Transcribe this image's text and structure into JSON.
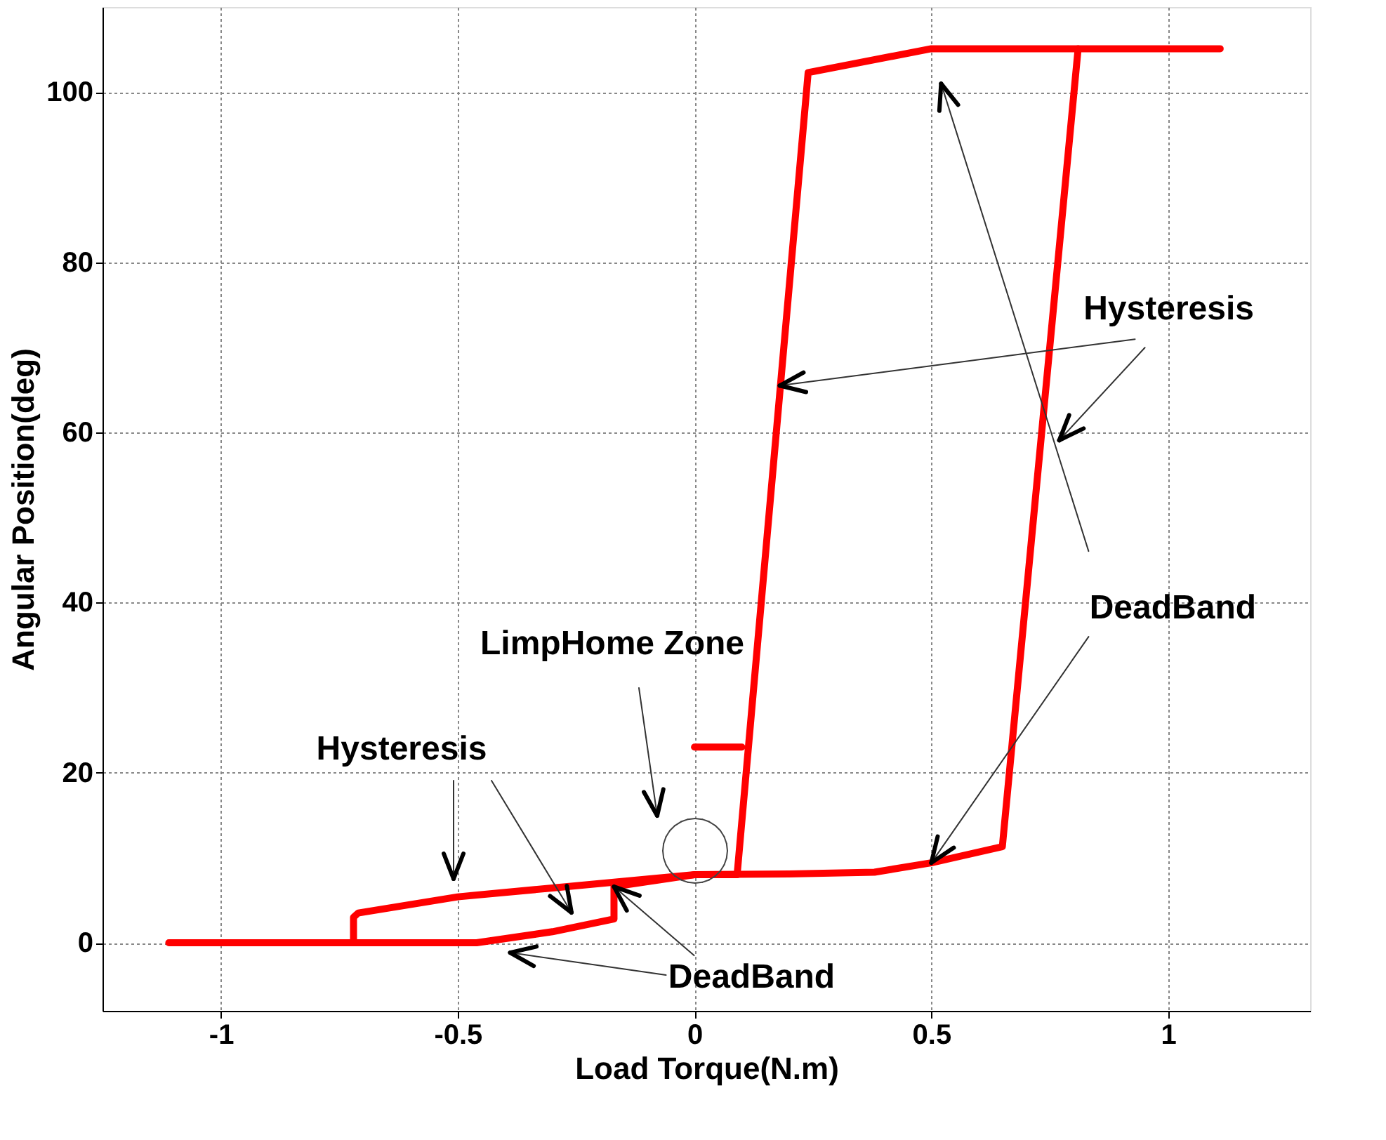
{
  "chart_data": {
    "type": "line",
    "xlabel": "Load Torque(N.m)",
    "ylabel": "Angular Position(deg)",
    "xlim": [
      -1.25,
      1.3
    ],
    "ylim": [
      -8,
      110
    ],
    "xticks": [
      -1,
      -0.5,
      0,
      0.5,
      1
    ],
    "yticks": [
      0,
      20,
      40,
      60,
      80,
      100
    ],
    "grid": true,
    "marker": "none",
    "line_style": "solid",
    "series": [
      {
        "color": "#ff0000",
        "x": [
          -1.11,
          -0.46,
          -0.3,
          -0.17,
          -0.17,
          0,
          0.09,
          0.24,
          0.5,
          1.11
        ],
        "values": [
          0,
          0,
          1.3,
          2.8,
          6.6,
          8,
          8,
          102.3,
          105.1,
          105.1
        ]
      },
      {
        "color": "#ff0000",
        "x": [
          0.81,
          0.65,
          0.5,
          0.38,
          0.2,
          0,
          -0.5,
          -0.71,
          -0.72,
          -0.72
        ],
        "values": [
          105.1,
          11.3,
          9.4,
          8.3,
          8.1,
          8,
          5.4,
          3.5,
          3,
          0
        ]
      },
      {
        "color": "#ff0000",
        "x": [
          0,
          0.1
        ],
        "values": [
          23,
          23
        ]
      }
    ],
    "annotations": [
      {
        "text": "Hysteresis",
        "x": 0.18,
        "y": 65.5
      },
      {
        "text": "DeadBand",
        "x": 0.5,
        "y": 9.4
      },
      "LimpHome Zone",
      "Hysteresis",
      {
        "text": "DeadBand",
        "x": -0.17,
        "y": 6.6
      }
    ]
  }
}
